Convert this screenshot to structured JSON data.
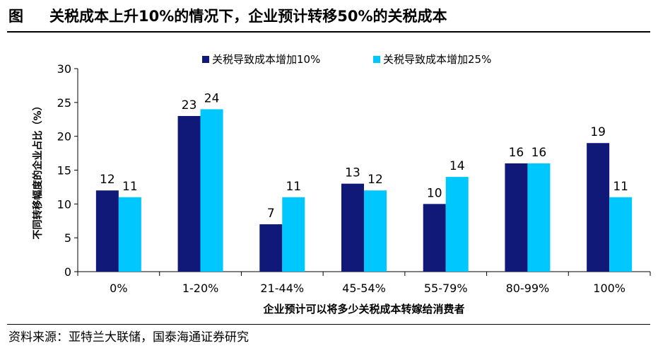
{
  "header": {
    "label": "图",
    "title": "关税成本上升10%的情况下，企业预计转移50%的关税成本"
  },
  "source": "资料来源：亚特兰大联储，国泰海通证券研究",
  "chart_data": {
    "type": "bar",
    "categories": [
      "0%",
      "1-20%",
      "21-44%",
      "45-54%",
      "55-79%",
      "80-99%",
      "100%"
    ],
    "series": [
      {
        "name": "关税导致成本增加10%",
        "values": [
          12,
          23,
          7,
          13,
          10,
          16,
          19
        ],
        "color": "#101878"
      },
      {
        "name": "关税导致成本增加25%",
        "values": [
          11,
          24,
          11,
          12,
          14,
          16,
          11
        ],
        "color": "#00C8FF"
      }
    ],
    "xlabel": "企业预计可以将多少关税成本转嫁给消费者",
    "ylabel": "不同转移幅度的企业占比（%）",
    "ylim": [
      0,
      30
    ],
    "yticks": [
      0,
      5,
      10,
      15,
      20,
      25,
      30
    ],
    "legend": "top",
    "grid": false,
    "data_labels": true
  }
}
